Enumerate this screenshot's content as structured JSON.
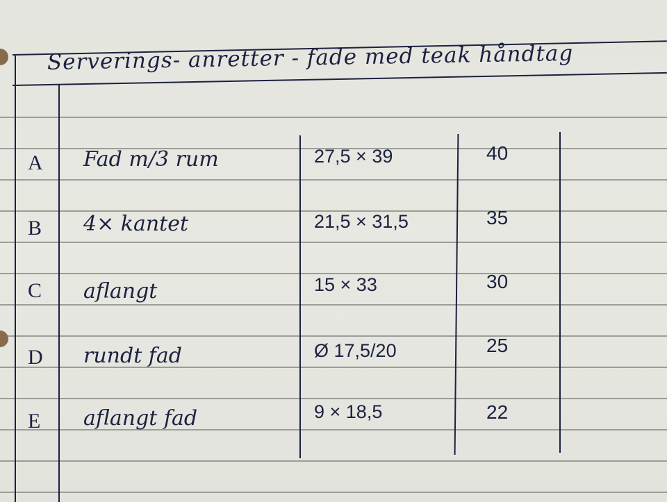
{
  "title": "Serverings- anretter - fade med teak håndtag",
  "rows": [
    {
      "letter": "A",
      "description": "Fad m/3 rum",
      "size": "27,5 × 39",
      "price": "40"
    },
    {
      "letter": "B",
      "description": "4× kantet",
      "size": "21,5 × 31,5",
      "price": "35"
    },
    {
      "letter": "C",
      "description": "aflangt",
      "size": "15 × 33",
      "price": "30"
    },
    {
      "letter": "D",
      "description": "rundt fad",
      "size": "Ø 17,5/20",
      "price": "25"
    },
    {
      "letter": "E",
      "description": "aflangt fad",
      "size": "9 × 18,5",
      "price": "22"
    }
  ],
  "colors": {
    "paper": "#e5e6df",
    "ink": "#1c2140",
    "rule": "#9c9d98"
  }
}
